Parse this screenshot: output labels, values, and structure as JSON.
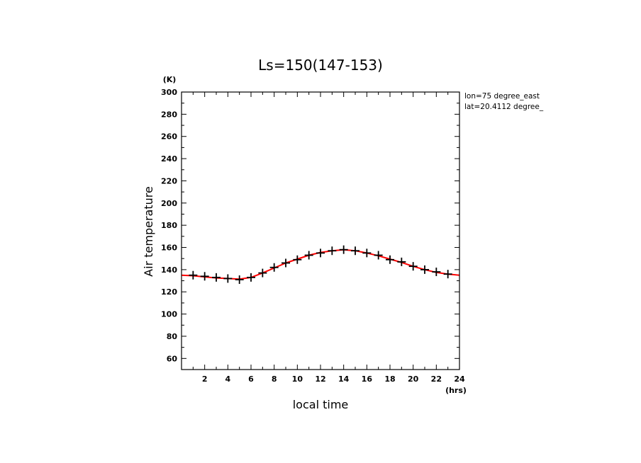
{
  "chart_data": {
    "type": "line",
    "title": "Ls=150(147-153)",
    "xlabel": "local time",
    "ylabel": "Air temperature",
    "x_unit": "(hrs)",
    "y_unit": "(K)",
    "annotations": [
      "lon=75 degree_east",
      "lat=20.4112 degree_"
    ],
    "xlim": [
      0,
      24
    ],
    "ylim": [
      50,
      300
    ],
    "x_ticks": [
      2,
      4,
      6,
      8,
      10,
      12,
      14,
      16,
      18,
      20,
      22,
      24
    ],
    "y_ticks": [
      60,
      80,
      100,
      120,
      140,
      160,
      180,
      200,
      220,
      240,
      260,
      280,
      300
    ],
    "grid": false,
    "series": [
      {
        "style": "markers",
        "marker": "plus",
        "color": "#000000",
        "x": [
          1,
          2,
          3,
          4,
          5,
          6,
          7,
          8,
          9,
          10,
          11,
          12,
          13,
          14,
          15,
          16,
          17,
          18,
          19,
          20,
          21,
          22,
          23
        ],
        "y": [
          135,
          134,
          133,
          132,
          131,
          133,
          137,
          142,
          146,
          149,
          153,
          155,
          157,
          158,
          157,
          155,
          153,
          149,
          147,
          143,
          140,
          138,
          136
        ]
      },
      {
        "style": "line",
        "color": "#ff0000",
        "x": [
          0,
          1,
          2,
          3,
          4,
          5,
          6,
          7,
          8,
          9,
          10,
          11,
          12,
          13,
          14,
          15,
          16,
          17,
          18,
          19,
          20,
          21,
          22,
          23,
          24
        ],
        "y": [
          135,
          134.5,
          133.5,
          132.5,
          132,
          131.5,
          133,
          137,
          141.5,
          146,
          149.5,
          153,
          155.5,
          157,
          158,
          157,
          155,
          152.5,
          149.5,
          146.5,
          143,
          140,
          137.5,
          136,
          135
        ]
      }
    ]
  }
}
